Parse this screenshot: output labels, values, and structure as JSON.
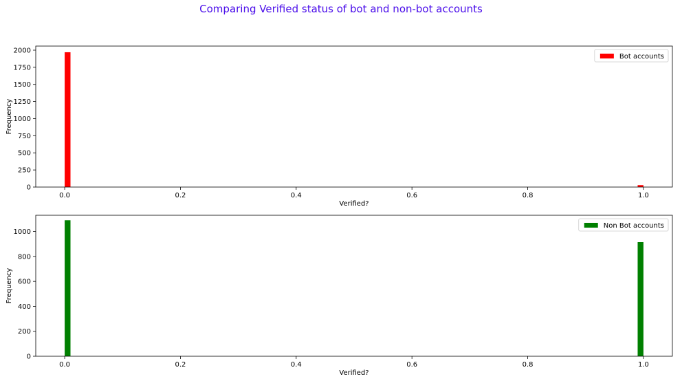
{
  "figure": {
    "title": "Comparing Verified status of bot and non-bot accounts",
    "title_color": "#4b0eea"
  },
  "chart_data": [
    {
      "type": "bar",
      "title": "",
      "xlabel": "Verified?",
      "ylabel": "Frequency",
      "xlim": [
        -0.05,
        1.05
      ],
      "ylim": [
        0,
        2060
      ],
      "xticks": [
        "0.0",
        "0.2",
        "0.4",
        "0.6",
        "0.8",
        "1.0"
      ],
      "yticks": [
        "0",
        "250",
        "500",
        "750",
        "1000",
        "1250",
        "1500",
        "1750",
        "2000"
      ],
      "legend_position": "top-right",
      "series": [
        {
          "name": "Bot accounts",
          "color": "#ff0000",
          "bins": [
            {
              "x": 0.0,
              "value": 1970
            },
            {
              "x": 1.0,
              "value": 28
            }
          ]
        }
      ]
    },
    {
      "type": "bar",
      "title": "",
      "xlabel": "Verified?",
      "ylabel": "Frequency",
      "xlim": [
        -0.05,
        1.05
      ],
      "ylim": [
        0,
        1130
      ],
      "xticks": [
        "0.0",
        "0.2",
        "0.4",
        "0.6",
        "0.8",
        "1.0"
      ],
      "yticks": [
        "0",
        "200",
        "400",
        "600",
        "800",
        "1000"
      ],
      "legend_position": "top-right",
      "series": [
        {
          "name": "Non Bot accounts",
          "color": "#008000",
          "bins": [
            {
              "x": 0.0,
              "value": 1090
            },
            {
              "x": 1.0,
              "value": 915
            }
          ]
        }
      ]
    }
  ]
}
